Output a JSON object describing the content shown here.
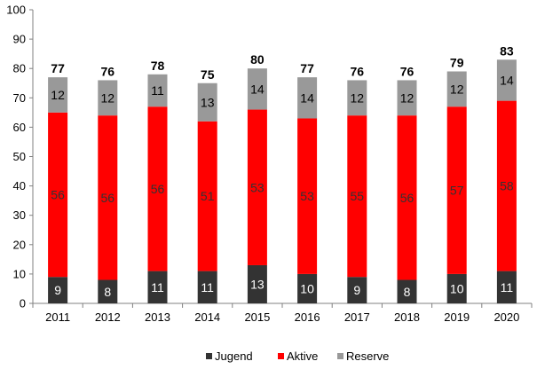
{
  "chart_data": {
    "type": "bar",
    "stacked": true,
    "title": "",
    "xlabel": "",
    "ylabel": "",
    "ylim": [
      0,
      100
    ],
    "ytick_step": 10,
    "grid": false,
    "legend_position": "bottom",
    "categories": [
      "2011",
      "2012",
      "2013",
      "2014",
      "2015",
      "2016",
      "2017",
      "2018",
      "2019",
      "2020"
    ],
    "series": [
      {
        "name": "Jugend",
        "color": "#333333",
        "label_color": "#ffffff",
        "values": [
          9,
          8,
          11,
          11,
          13,
          10,
          9,
          8,
          10,
          11
        ]
      },
      {
        "name": "Aktive",
        "color": "#ff0000",
        "label_color": "#333333",
        "values": [
          56,
          56,
          56,
          51,
          53,
          53,
          55,
          56,
          57,
          58
        ]
      },
      {
        "name": "Reserve",
        "color": "#999999",
        "label_color": "#000000",
        "values": [
          12,
          12,
          11,
          13,
          14,
          14,
          12,
          12,
          12,
          14
        ]
      }
    ],
    "totals": [
      77,
      76,
      78,
      75,
      80,
      77,
      76,
      76,
      79,
      83
    ]
  }
}
